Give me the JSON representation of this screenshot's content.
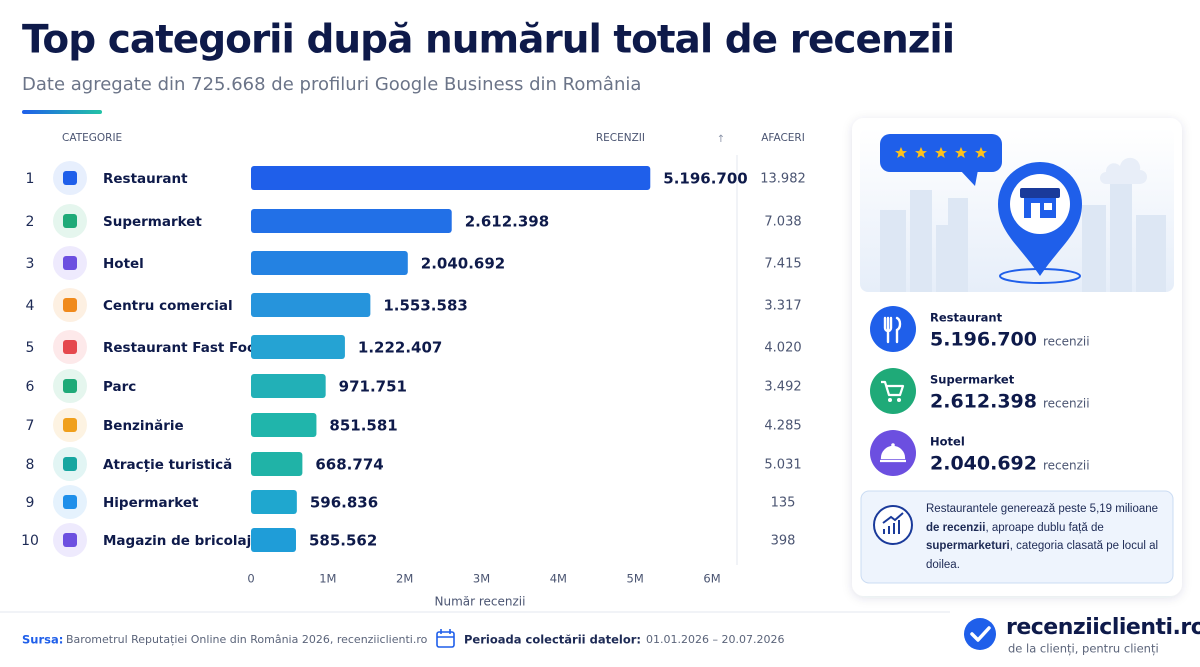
{
  "chart_data": {
    "type": "bar",
    "orientation": "horizontal",
    "title": "Top categorii după numărul total de recenzii",
    "subtitle": "Date agregate din 725.668 de profiluri Google Business din România",
    "column_headers": {
      "category": "CATEGORIE",
      "reviews": "RECENZII",
      "businesses": "AFACERI"
    },
    "ranks": [
      1,
      2,
      3,
      4,
      5,
      6,
      7,
      8,
      9,
      10
    ],
    "categories": [
      "Restaurant",
      "Supermarket",
      "Hotel",
      "Centru comercial",
      "Restaurant Fast Food",
      "Parc",
      "Benzinărie",
      "Atracție turistică",
      "Hipermarket",
      "Magazin de bricolaj"
    ],
    "values": [
      5196700,
      2612398,
      2040692,
      1553583,
      1222407,
      971751,
      851581,
      668774,
      596836,
      585562
    ],
    "value_labels": [
      "5.196.700",
      "2.612.398",
      "2.040.692",
      "1.553.583",
      "1.222.407",
      "971.751",
      "851.581",
      "668.774",
      "596.836",
      "585.562"
    ],
    "colors": [
      "#1f5fea",
      "#2270e7",
      "#2482e2",
      "#2694dc",
      "#25a3d3",
      "#22b0b7",
      "#20b5ab",
      "#20b3a7",
      "#1fa7cf",
      "#1f9dd8"
    ],
    "businesses": [
      "13.982",
      "7.038",
      "7.415",
      "3.317",
      "4.020",
      "3.492",
      "4.285",
      "5.031",
      "135",
      "398"
    ],
    "xlim": [
      0,
      6000000
    ],
    "xticks": [
      0,
      {
        "value": 1000000,
        "label": "1M"
      },
      {
        "value": 2000000,
        "label": "2M"
      },
      {
        "value": 3000000,
        "label": "3M"
      },
      {
        "value": 4000000,
        "label": "4M"
      },
      {
        "value": 5000000,
        "label": "5M"
      },
      {
        "value": 6000000,
        "label": "6M"
      }
    ],
    "xlabel": "Număr recenzii"
  },
  "side_panel": {
    "unit_label": "recenzii",
    "insight": [
      {
        "text": "Restaurantele generează peste 5,19 milioane ",
        "bold": false
      },
      {
        "text": "de recenzii",
        "bold": true
      },
      {
        "text": ", aproape dublu față de ",
        "bold": false
      },
      {
        "text": "supermarketuri",
        "bold": true
      },
      {
        "text": ", categoria clasată pe locul al doilea.",
        "bold": false
      }
    ]
  },
  "footer": {
    "source_label": "Sursa:",
    "source": "Barometrul Reputației Online din România 2026, recenziiclienti.ro",
    "period_label": "Perioada colectării datelor:",
    "period": "01.01.2026 – 20.07.2026",
    "brand": "recenziiclienti.ro",
    "tagline": "de la clienți, pentru clienți"
  }
}
